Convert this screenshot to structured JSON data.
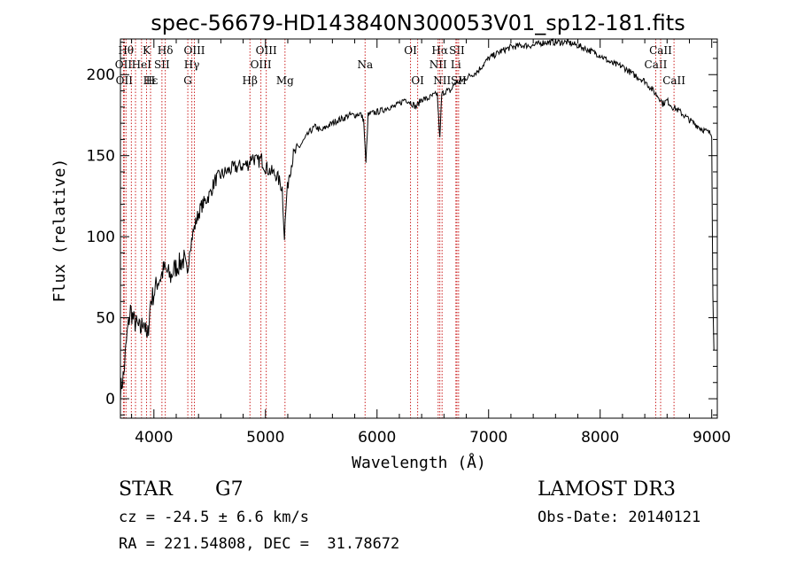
{
  "chart_data": {
    "type": "line",
    "title": "spec-56679-HD143840N300053V01_sp12-181.fits",
    "xlabel": "Wavelength (Å)",
    "ylabel": "Flux (relative)",
    "xlim": [
      3700,
      9050
    ],
    "ylim": [
      -12,
      222
    ],
    "x_ticks": [
      4000,
      5000,
      6000,
      7000,
      8000,
      9000
    ],
    "y_ticks": [
      0,
      50,
      100,
      150,
      200
    ],
    "series": [
      {
        "name": "flux",
        "x": [
          3700,
          3730,
          3760,
          3790,
          3820,
          3850,
          3880,
          3910,
          3940,
          3970,
          4000,
          4030,
          4060,
          4090,
          4120,
          4150,
          4180,
          4210,
          4240,
          4270,
          4300,
          4320,
          4350,
          4380,
          4420,
          4460,
          4500,
          4550,
          4600,
          4650,
          4700,
          4750,
          4800,
          4850,
          4880,
          4900,
          4930,
          4960,
          5000,
          5050,
          5100,
          5150,
          5170,
          5190,
          5210,
          5250,
          5300,
          5350,
          5400,
          5450,
          5500,
          5550,
          5600,
          5650,
          5700,
          5750,
          5800,
          5850,
          5880,
          5900,
          5920,
          5950,
          6000,
          6050,
          6100,
          6150,
          6200,
          6250,
          6300,
          6350,
          6400,
          6450,
          6500,
          6540,
          6563,
          6580,
          6620,
          6660,
          6700,
          6750,
          6800,
          6850,
          6900,
          6950,
          7000,
          7100,
          7200,
          7300,
          7400,
          7500,
          7600,
          7700,
          7800,
          7900,
          8000,
          8100,
          8200,
          8300,
          8400,
          8450,
          8500,
          8540,
          8560,
          8600,
          8650,
          8700,
          8800,
          8900,
          8950,
          8980,
          9000,
          9010,
          9020
        ],
        "values": [
          5,
          15,
          40,
          55,
          48,
          45,
          42,
          50,
          35,
          60,
          65,
          72,
          75,
          80,
          78,
          75,
          80,
          82,
          84,
          86,
          75,
          93,
          102,
          110,
          118,
          122,
          126,
          135,
          138,
          140,
          142,
          143,
          144,
          145,
          150,
          148,
          146,
          148,
          143,
          140,
          138,
          130,
          100,
          125,
          138,
          150,
          155,
          160,
          165,
          168,
          165,
          168,
          170,
          172,
          173,
          175,
          175,
          176,
          172,
          145,
          175,
          176,
          177,
          178,
          180,
          180,
          182,
          185,
          183,
          180,
          185,
          185,
          187,
          188,
          160,
          188,
          190,
          190,
          195,
          196,
          198,
          200,
          202,
          206,
          210,
          214,
          217,
          218,
          218,
          220,
          220,
          220,
          218,
          215,
          212,
          207,
          205,
          200,
          196,
          192,
          188,
          185,
          182,
          184,
          180,
          178,
          172,
          167,
          165,
          164,
          163,
          65,
          30
        ]
      }
    ],
    "spectral_lines": [
      {
        "x": 3750,
        "label": "Hθ",
        "row": 0
      },
      {
        "x": 3727,
        "label": "OII",
        "row": 1
      },
      {
        "x": 3734,
        "label": "OII",
        "row": 2
      },
      {
        "x": 3798,
        "label": "",
        "row": 0
      },
      {
        "x": 3835,
        "label": "",
        "row": 0
      },
      {
        "x": 3889,
        "label": "HeI",
        "row": 1
      },
      {
        "x": 3934,
        "label": "K",
        "row": 0
      },
      {
        "x": 3970,
        "label": "H",
        "row": 2
      },
      {
        "x": 3970,
        "label": "Hε",
        "row": 2
      },
      {
        "x": 4072,
        "label": "SII",
        "row": 1
      },
      {
        "x": 4102,
        "label": "Hδ",
        "row": 0
      },
      {
        "x": 4304,
        "label": "G",
        "row": 2
      },
      {
        "x": 4340,
        "label": "Hγ",
        "row": 1
      },
      {
        "x": 4363,
        "label": "OIII",
        "row": 0
      },
      {
        "x": 4861,
        "label": "Hβ",
        "row": 2
      },
      {
        "x": 4959,
        "label": "OIII",
        "row": 1
      },
      {
        "x": 5007,
        "label": "OIII",
        "row": 0
      },
      {
        "x": 5175,
        "label": "Mg",
        "row": 2
      },
      {
        "x": 5893,
        "label": "Na",
        "row": 1
      },
      {
        "x": 6300,
        "label": "OI",
        "row": 0
      },
      {
        "x": 6364,
        "label": "OI",
        "row": 2
      },
      {
        "x": 6548,
        "label": "NII",
        "row": 1
      },
      {
        "x": 6563,
        "label": "Hα",
        "row": 0
      },
      {
        "x": 6583,
        "label": "NII",
        "row": 2
      },
      {
        "x": 6707,
        "label": "Li",
        "row": 1
      },
      {
        "x": 6716,
        "label": "SII",
        "row": 0
      },
      {
        "x": 6731,
        "label": "SII",
        "row": 2
      },
      {
        "x": 8498,
        "label": "CaII",
        "row": 1
      },
      {
        "x": 8542,
        "label": "CaII",
        "row": 0
      },
      {
        "x": 8662,
        "label": "CaII",
        "row": 2
      }
    ]
  },
  "info": {
    "object_class": "STAR",
    "subclass": "G7",
    "survey": "LAMOST DR3",
    "redshift": "cz = -24.5 ± 6.6 km/s",
    "obs_date": "Obs-Date: 20140121",
    "coords": "RA = 221.54808, DEC =  31.78672"
  },
  "colors": {
    "line_marker": "#cc2222",
    "spectrum": "#000000",
    "axis": "#000000"
  }
}
